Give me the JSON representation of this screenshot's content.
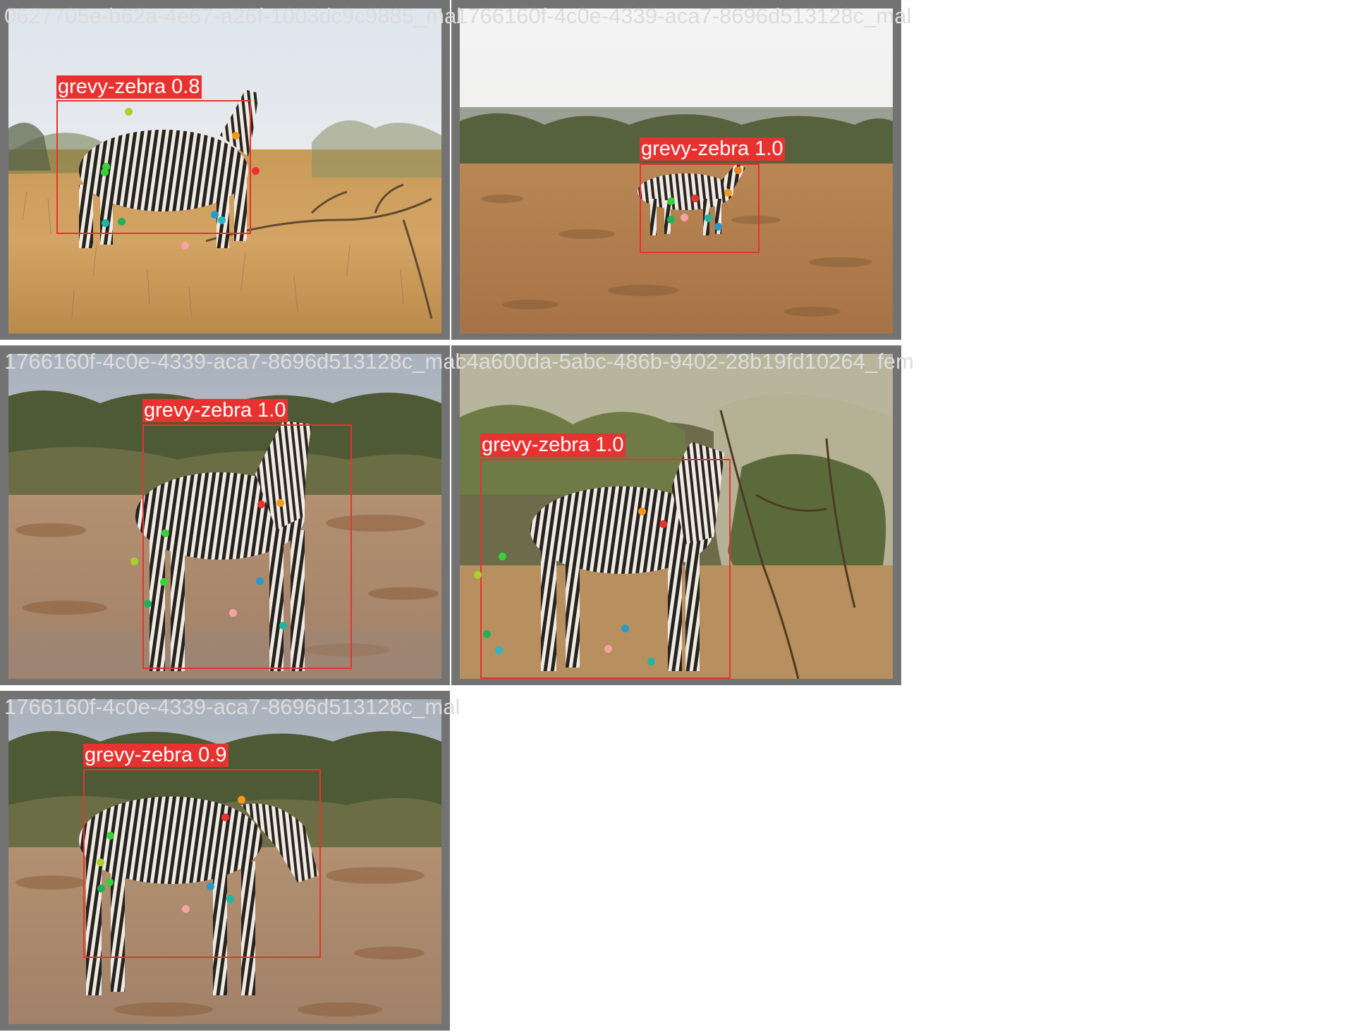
{
  "tiles": [
    {
      "title": "0627705e-b62a-4e67-a26f-1003dc9c9885_mal",
      "scene": "dry-grass",
      "detection": {
        "label": "grevy-zebra 0.8"
      },
      "keypoint_colors": [
        "#b9c82a",
        "#ef9a1a",
        "#e8322f",
        "#39d13a",
        "#39d13a",
        "#22b058",
        "#1fb5a0",
        "#2a98c9",
        "#2ab8c8",
        "#f5a3a3"
      ]
    },
    {
      "title": "1766160f-4c0e-4339-aca7-8696d513128c_mal",
      "scene": "plain",
      "detection": {
        "label": "grevy-zebra 1.0"
      },
      "keypoint_colors": [
        "#ef7f1a",
        "#ef9a1a",
        "#e8322f",
        "#39d13a",
        "#22b058",
        "#f5a3a3",
        "#1fb5a0",
        "#2a98c9"
      ]
    },
    {
      "title": "1766160f-4c0e-4339-aca7-8696d513128c_mal",
      "scene": "plain-dusty",
      "detection": {
        "label": "grevy-zebra 1.0"
      },
      "keypoint_colors": [
        "#e8322f",
        "#ef9a1a",
        "#39d13a",
        "#a8d12a",
        "#39d13a",
        "#22b058",
        "#2a98c9",
        "#f5a3a3",
        "#1fb5a0"
      ]
    },
    {
      "title": "c4a600da-5abc-486b-9402-28b19fd10264_fem",
      "scene": "bush",
      "detection": {
        "label": "grevy-zebra 1.0"
      },
      "keypoint_colors": [
        "#ef9a1a",
        "#e8322f",
        "#39d13a",
        "#a8d12a",
        "#22b058",
        "#2ab8c8",
        "#2a98c9",
        "#f5a3a3",
        "#1fb5a0"
      ]
    },
    {
      "title": "1766160f-4c0e-4339-aca7-8696d513128c_mal",
      "scene": "plain-dusty",
      "detection": {
        "label": "grevy-zebra 0.9"
      },
      "keypoint_colors": [
        "#ef9a1a",
        "#e8322f",
        "#39d13a",
        "#a8d12a",
        "#39d13a",
        "#22b058",
        "#2a98c9",
        "#1fb5a0",
        "#f5a3a3"
      ]
    }
  ]
}
